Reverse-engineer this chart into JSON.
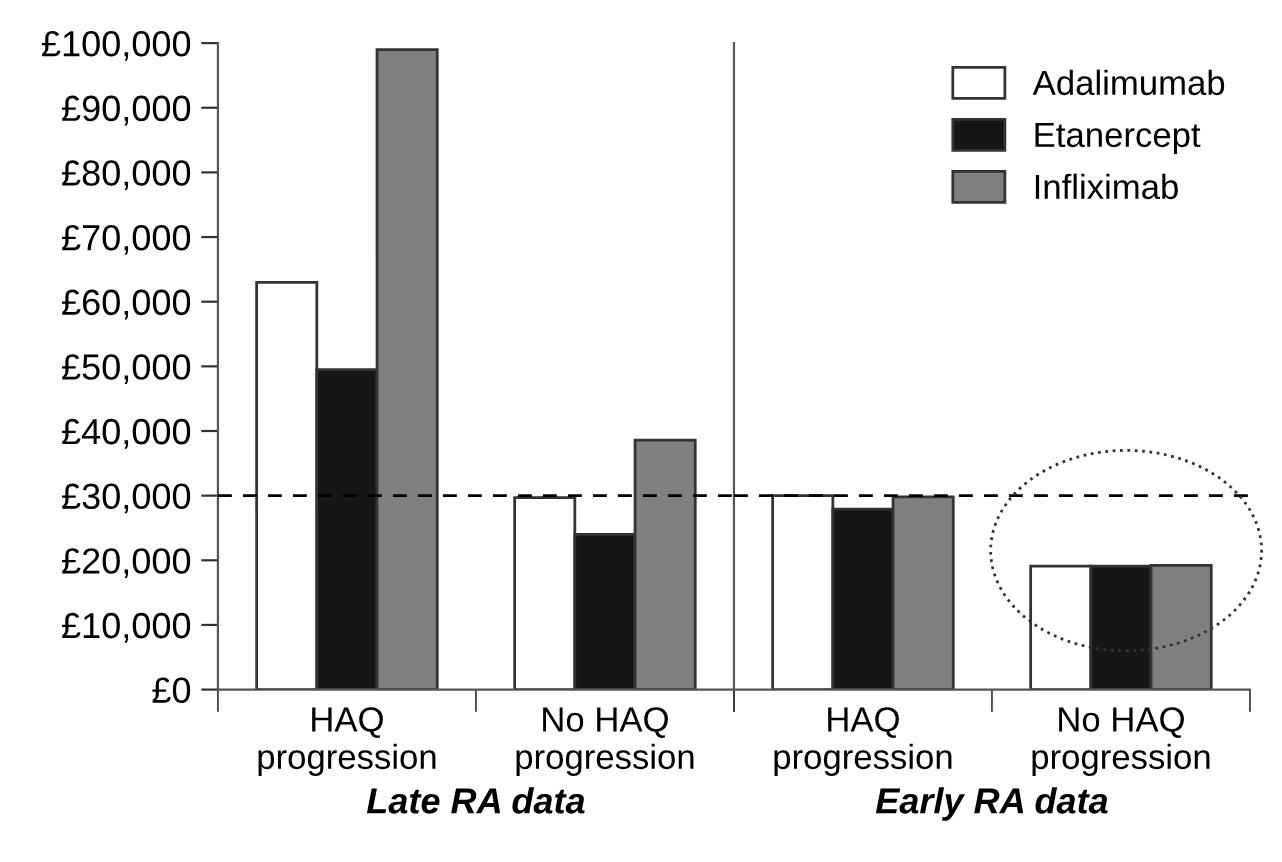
{
  "chart_data": [
    {
      "type": "bar",
      "xlabel": "Late RA data",
      "categories": [
        "HAQ\nprogression",
        "No HAQ\nprogression"
      ],
      "series": [
        {
          "color": "#ffffff",
          "values": [
            63000,
            29700
          ]
        },
        {
          "color": "#161616",
          "values": [
            49500,
            24000
          ]
        },
        {
          "color": "#808080",
          "values": [
            99000,
            38600
          ]
        }
      ],
      "ylim": [
        0,
        100000
      ],
      "yticks": [
        {
          "value": 0,
          "label": "£0"
        },
        {
          "value": 10000,
          "label": "£10,000"
        },
        {
          "value": 20000,
          "label": "£20,000"
        },
        {
          "value": 30000,
          "label": "£30,000"
        },
        {
          "value": 40000,
          "label": "£40,000"
        },
        {
          "value": 50000,
          "label": "£50,000"
        },
        {
          "value": 60000,
          "label": "£60,000"
        },
        {
          "value": 70000,
          "label": "£70,000"
        },
        {
          "value": 80000,
          "label": "£80,000"
        },
        {
          "value": 90000,
          "label": "£90,000"
        },
        {
          "value": 100000,
          "label": "£100,000"
        }
      ],
      "ref_lines": [
        {
          "axis": "y",
          "value": 30000,
          "color": "#000000",
          "line_style": "dashed"
        }
      ],
      "grid": false
    },
    {
      "type": "bar",
      "xlabel": "Early RA data",
      "categories": [
        "HAQ\nprogression",
        "No HAQ\nprogression"
      ],
      "series": [
        {
          "name": "Adalimumab",
          "color": "#ffffff",
          "values": [
            30000,
            19100
          ]
        },
        {
          "name": "Etanercept",
          "color": "#161616",
          "values": [
            27900,
            19100
          ]
        },
        {
          "name": "Infliximab",
          "color": "#808080",
          "values": [
            29800,
            19200
          ]
        }
      ],
      "ylim": [
        0,
        100000
      ],
      "tick_labels": "x",
      "ref_lines": [
        {
          "axis": "y",
          "value": 30000,
          "color": "#000000",
          "line_style": "dashed"
        }
      ],
      "legend": "top right",
      "grid": false
    }
  ]
}
